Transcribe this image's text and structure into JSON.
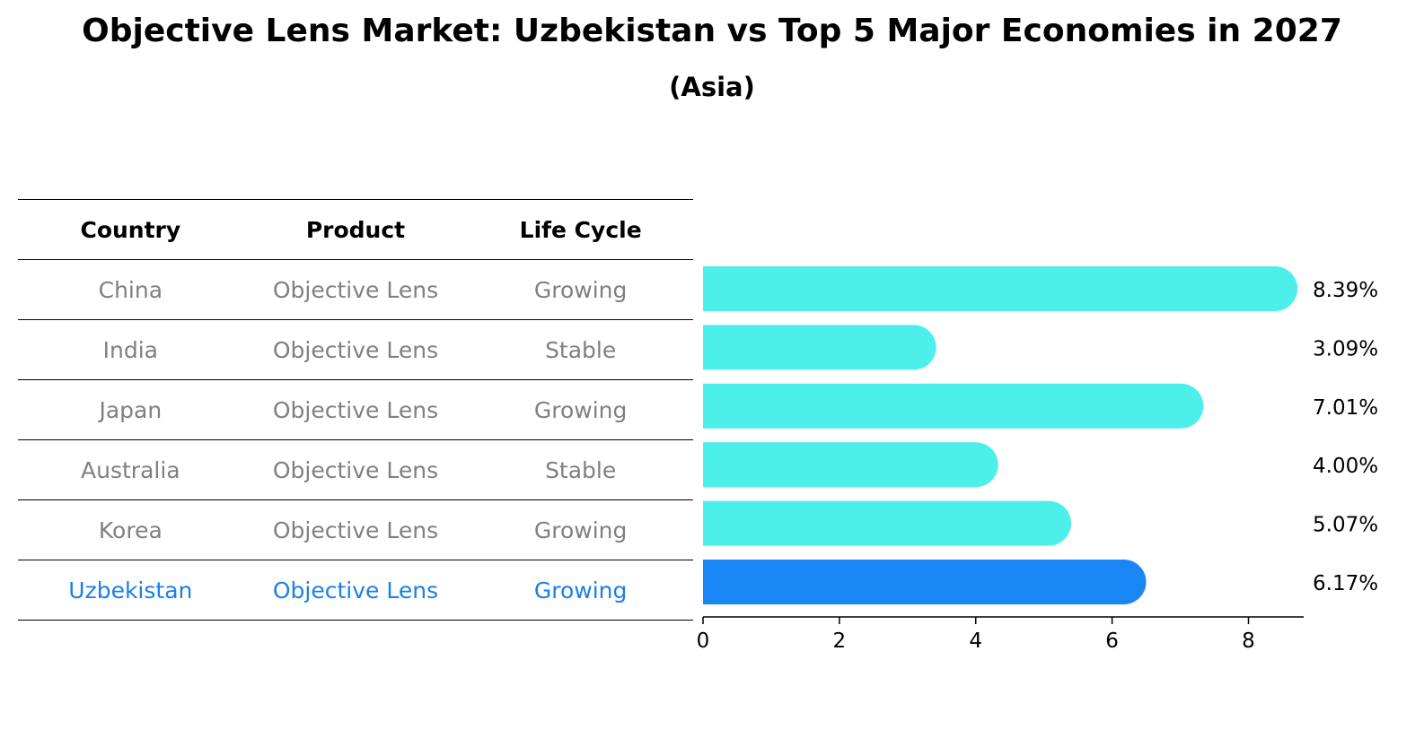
{
  "title": "Objective Lens Market: Uzbekistan vs Top 5 Major Economies in 2027",
  "subtitle": "(Asia)",
  "table": {
    "headers": [
      "Country",
      "Product",
      "Life Cycle"
    ],
    "rows": [
      [
        "China",
        "Objective Lens",
        "Growing"
      ],
      [
        "India",
        "Objective Lens",
        "Stable"
      ],
      [
        "Japan",
        "Objective Lens",
        "Growing"
      ],
      [
        "Australia",
        "Objective Lens",
        "Stable"
      ],
      [
        "Korea",
        "Objective Lens",
        "Growing"
      ],
      [
        "Uzbekistan",
        "Objective Lens",
        "Growing"
      ]
    ],
    "highlight_row": 5
  },
  "chart_data": {
    "type": "bar",
    "orientation": "horizontal",
    "categories": [
      "China",
      "India",
      "Japan",
      "Australia",
      "Korea",
      "Uzbekistan"
    ],
    "values": [
      8.39,
      3.09,
      7.01,
      4.0,
      5.07,
      6.17
    ],
    "value_labels": [
      "8.39%",
      "3.09%",
      "7.01%",
      "4.00%",
      "5.07%",
      "6.17%"
    ],
    "xlim": [
      0,
      8.81
    ],
    "xticks": [
      0,
      2,
      4,
      6,
      8
    ],
    "grid": false,
    "colors": {
      "default": "#4cefea",
      "highlight": "#1a86f5"
    },
    "highlight_index": 5
  }
}
